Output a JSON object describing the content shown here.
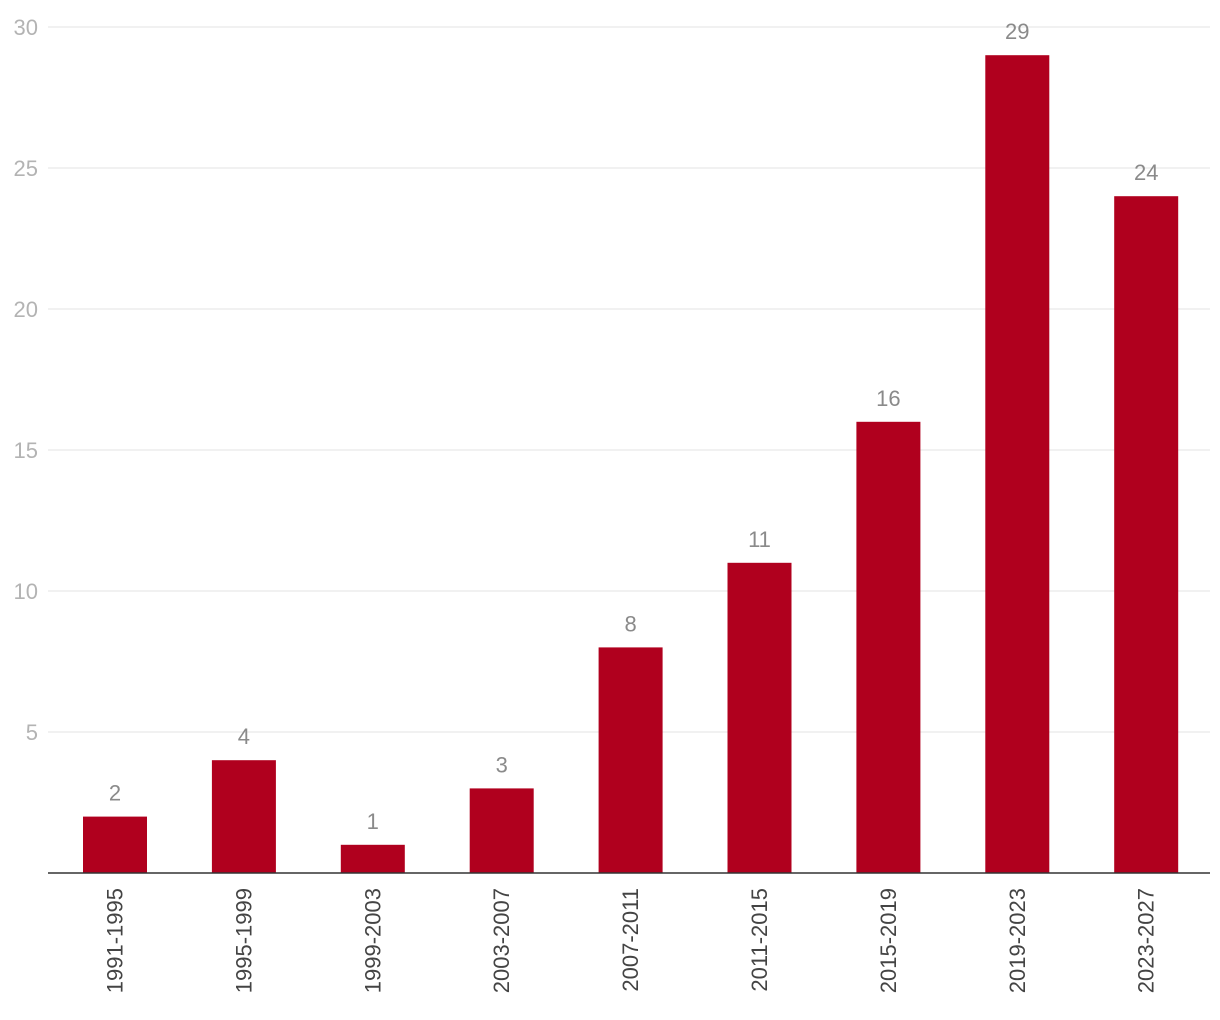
{
  "chart_data": {
    "type": "bar",
    "title": "",
    "xlabel": "",
    "ylabel": "",
    "categories": [
      "1991-1995",
      "1995-1999",
      "1999-2003",
      "2003-2007",
      "2007-2011",
      "2011-2015",
      "2015-2019",
      "2019-2023",
      "2023-2027"
    ],
    "values": [
      2,
      4,
      1,
      3,
      8,
      11,
      16,
      29,
      24
    ],
    "ylim": [
      0,
      30
    ],
    "yticks": [
      5,
      10,
      15,
      20,
      25,
      30
    ],
    "grid": true,
    "legend": "none",
    "bar_color": "#b0001e"
  }
}
